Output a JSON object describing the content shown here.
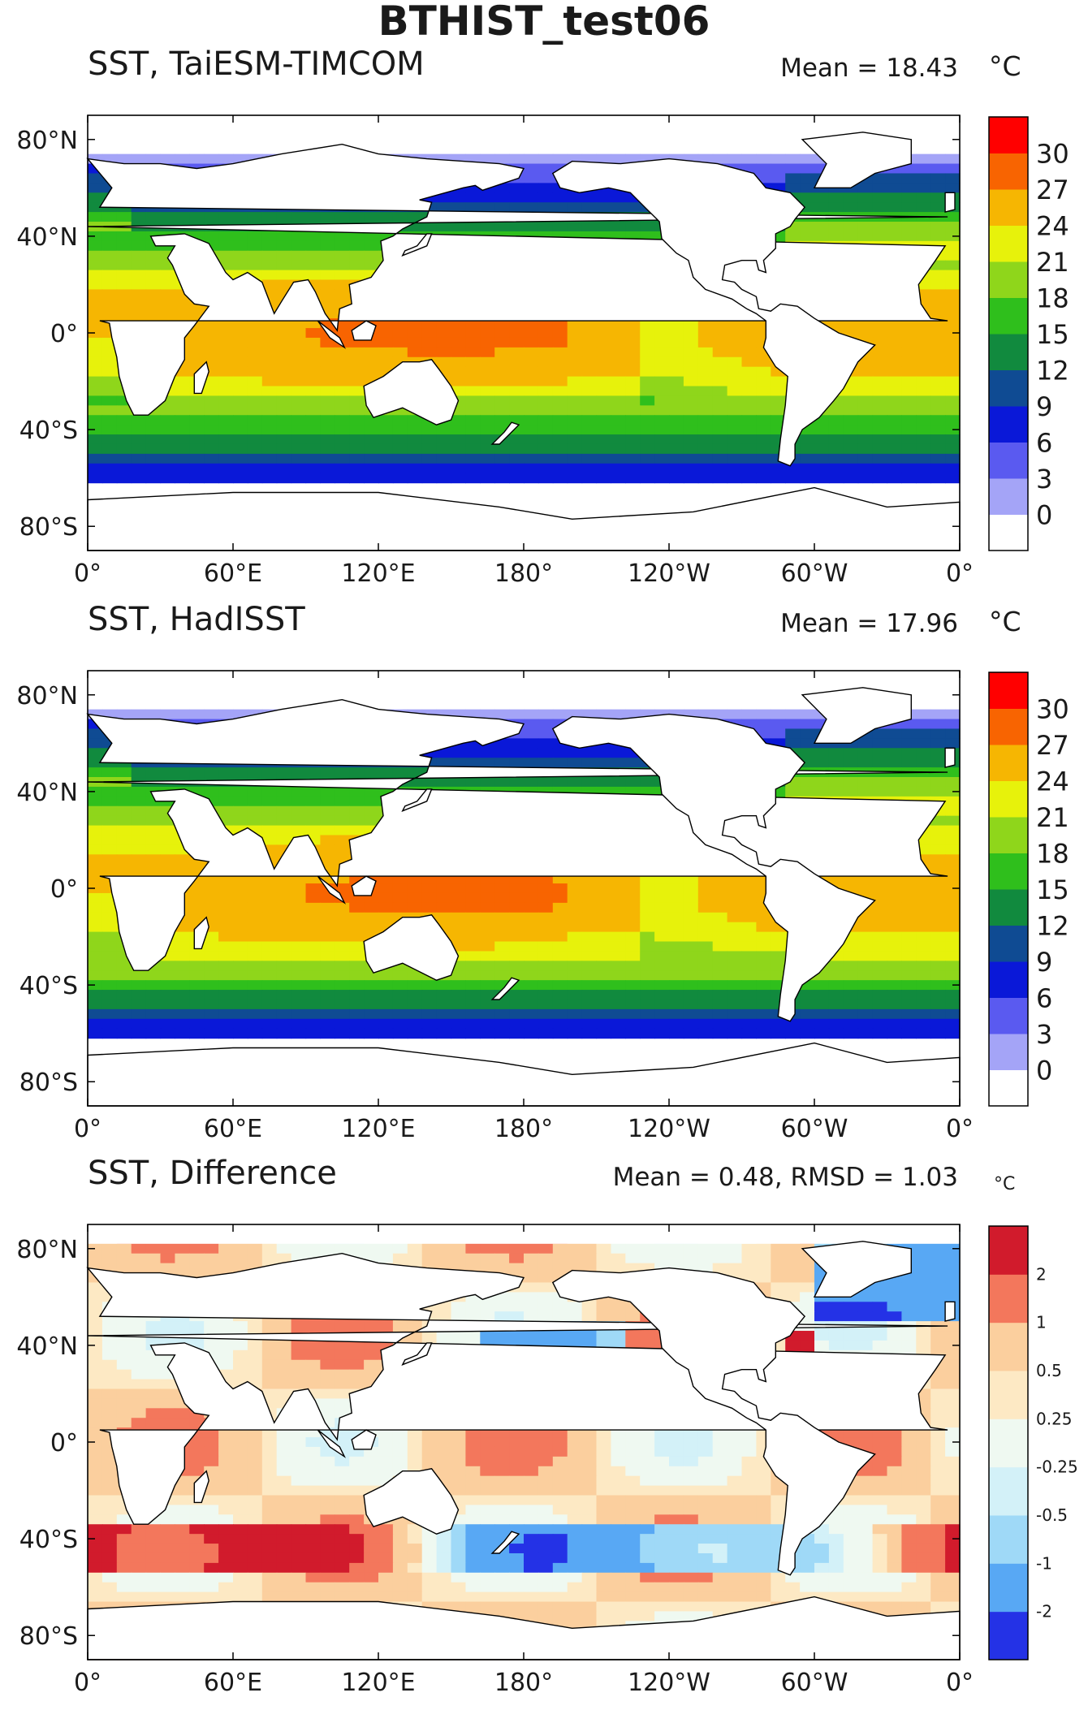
{
  "figure": {
    "title": "BTHIST_test06",
    "xticks": [
      "0°",
      "60°E",
      "120°E",
      "180°",
      "120°W",
      "60°W",
      "0°"
    ],
    "yticks": [
      "80°N",
      "40°N",
      "0°",
      "40°S",
      "80°S"
    ]
  },
  "panels": [
    {
      "title": "SST, TaiESM-TIMCOM",
      "stat": "Mean = 18.43",
      "unit": "°C",
      "colorbar_labels": [
        "30",
        "27",
        "24",
        "21",
        "18",
        "15",
        "12",
        "9",
        "6",
        "3",
        "0"
      ],
      "colors": [
        "#ffffff",
        "#a4a4f7",
        "#5a5af0",
        "#0a18d8",
        "#0f4b93",
        "#118a3e",
        "#2fbf1c",
        "#8fd61b",
        "#e7f20b",
        "#f6b602",
        "#f86401",
        "#ff0000"
      ]
    },
    {
      "title": "SST, HadISST",
      "stat": "Mean = 17.96",
      "unit": "°C",
      "colorbar_labels": [
        "30",
        "27",
        "24",
        "21",
        "18",
        "15",
        "12",
        "9",
        "6",
        "3",
        "0"
      ],
      "colors": [
        "#ffffff",
        "#a4a4f7",
        "#5a5af0",
        "#0a18d8",
        "#0f4b93",
        "#118a3e",
        "#2fbf1c",
        "#8fd61b",
        "#e7f20b",
        "#f6b602",
        "#f86401",
        "#ff0000"
      ]
    },
    {
      "title": "SST, Difference",
      "stat": "Mean = 0.48, RMSD = 1.03",
      "unit": "°C",
      "colorbar_labels": [
        "2",
        "1",
        "0.5",
        "0.25",
        "-0.25",
        "-0.5",
        "-1",
        "-2"
      ],
      "colors": [
        "#2432e6",
        "#58a8f4",
        "#9fd9f7",
        "#d3f1f8",
        "#eff9f1",
        "#fde9c4",
        "#fbcf9e",
        "#f3775c",
        "#d11b2c"
      ]
    }
  ],
  "chart_data": [
    {
      "type": "heatmap",
      "title": "SST, TaiESM-TIMCOM",
      "variable": "SST",
      "units": "°C",
      "mean": 18.43,
      "xlim": [
        0,
        360
      ],
      "ylim": [
        -90,
        90
      ],
      "colorbar": {
        "levels": [
          0,
          3,
          6,
          9,
          12,
          15,
          18,
          21,
          24,
          27,
          30
        ]
      },
      "zonal_profile": [
        {
          "lat": 75,
          "sst": 0.5
        },
        {
          "lat": 60,
          "sst": 6
        },
        {
          "lat": 45,
          "sst": 12
        },
        {
          "lat": 30,
          "sst": 21
        },
        {
          "lat": 15,
          "sst": 26
        },
        {
          "lat": 0,
          "sst": 27
        },
        {
          "lat": -15,
          "sst": 25
        },
        {
          "lat": -30,
          "sst": 19
        },
        {
          "lat": -45,
          "sst": 9
        },
        {
          "lat": -55,
          "sst": 3
        },
        {
          "lat": -65,
          "sst": 0.5
        }
      ]
    },
    {
      "type": "heatmap",
      "title": "SST, HadISST",
      "variable": "SST",
      "units": "°C",
      "mean": 17.96,
      "xlim": [
        0,
        360
      ],
      "ylim": [
        -90,
        90
      ],
      "colorbar": {
        "levels": [
          0,
          3,
          6,
          9,
          12,
          15,
          18,
          21,
          24,
          27,
          30
        ]
      },
      "zonal_profile": [
        {
          "lat": 75,
          "sst": 0.5
        },
        {
          "lat": 60,
          "sst": 5
        },
        {
          "lat": 45,
          "sst": 11
        },
        {
          "lat": 30,
          "sst": 21
        },
        {
          "lat": 15,
          "sst": 27
        },
        {
          "lat": 0,
          "sst": 27
        },
        {
          "lat": -15,
          "sst": 25
        },
        {
          "lat": -30,
          "sst": 19
        },
        {
          "lat": -45,
          "sst": 8
        },
        {
          "lat": -55,
          "sst": 2
        },
        {
          "lat": -65,
          "sst": 0.5
        }
      ]
    },
    {
      "type": "heatmap",
      "title": "SST, Difference",
      "variable": "SST difference",
      "units": "°C",
      "mean": 0.48,
      "rmsd": 1.03,
      "xlim": [
        0,
        360
      ],
      "ylim": [
        -90,
        90
      ],
      "colorbar": {
        "levels": [
          -2,
          -1,
          -0.5,
          -0.25,
          0.25,
          0.5,
          1,
          2
        ]
      }
    }
  ]
}
